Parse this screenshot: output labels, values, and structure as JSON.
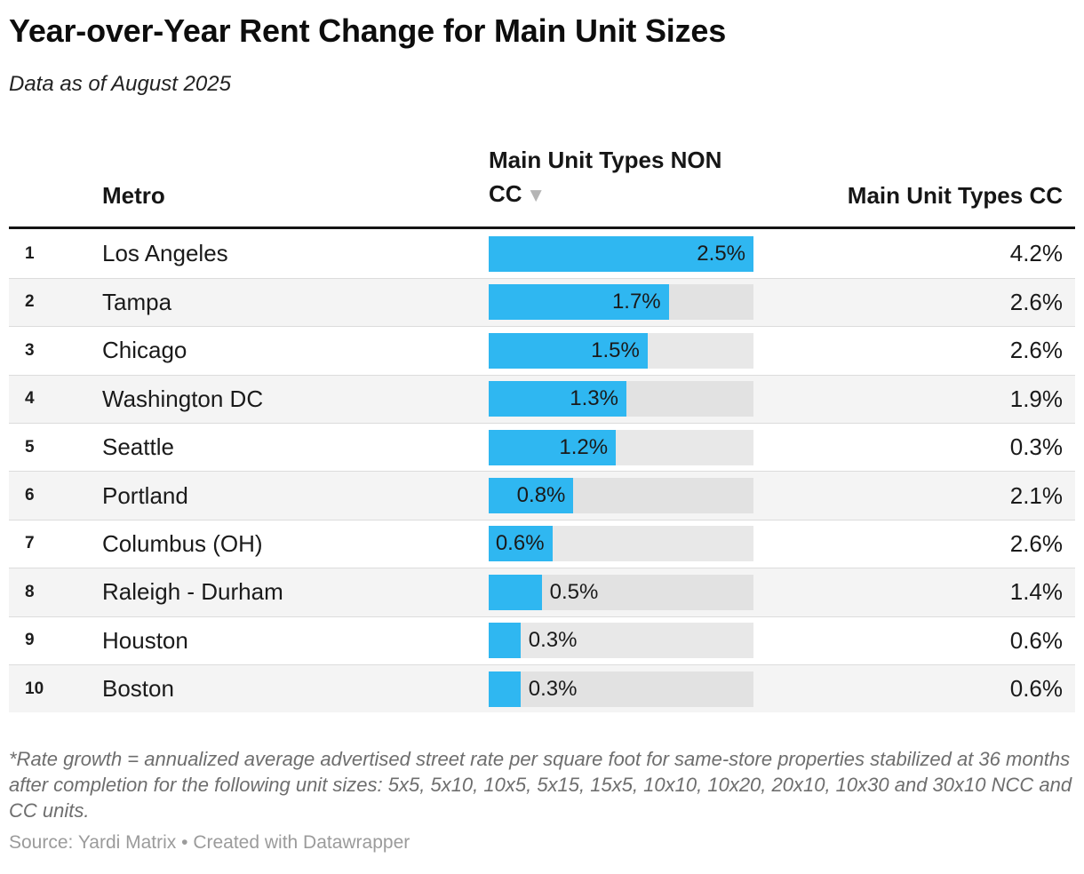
{
  "header": {
    "title": "Year-over-Year Rent Change for Main Unit Sizes",
    "subtitle": "Data as of August 2025"
  },
  "table": {
    "columns": {
      "rank": "",
      "metro": "Metro",
      "non_cc": "Main Unit Types NON CC",
      "cc": "Main Unit Types CC"
    },
    "sorted_column": "Main Unit Types NON CC",
    "sort_direction": "descending"
  },
  "icons": {
    "sort_desc": "▼"
  },
  "chart_data": {
    "type": "table",
    "title": "Year-over-Year Rent Change for Main Unit Sizes",
    "subtitle": "Data as of August 2025",
    "bar_column": "Main Unit Types NON CC",
    "bar_axis_max": 2.5,
    "columns": [
      "Metro",
      "Main Unit Types NON CC",
      "Main Unit Types CC"
    ],
    "rows": [
      {
        "rank": "1",
        "metro": "Los Angeles",
        "non_cc": 2.5,
        "non_cc_label": "2.5%",
        "cc": 4.2,
        "cc_label": "4.2%"
      },
      {
        "rank": "2",
        "metro": "Tampa",
        "non_cc": 1.7,
        "non_cc_label": "1.7%",
        "cc": 2.6,
        "cc_label": "2.6%"
      },
      {
        "rank": "3",
        "metro": "Chicago",
        "non_cc": 1.5,
        "non_cc_label": "1.5%",
        "cc": 2.6,
        "cc_label": "2.6%"
      },
      {
        "rank": "4",
        "metro": "Washington DC",
        "non_cc": 1.3,
        "non_cc_label": "1.3%",
        "cc": 1.9,
        "cc_label": "1.9%"
      },
      {
        "rank": "5",
        "metro": "Seattle",
        "non_cc": 1.2,
        "non_cc_label": "1.2%",
        "cc": 0.3,
        "cc_label": "0.3%"
      },
      {
        "rank": "6",
        "metro": "Portland",
        "non_cc": 0.8,
        "non_cc_label": "0.8%",
        "cc": 2.1,
        "cc_label": "2.1%"
      },
      {
        "rank": "7",
        "metro": "Columbus (OH)",
        "non_cc": 0.6,
        "non_cc_label": "0.6%",
        "cc": 2.6,
        "cc_label": "2.6%"
      },
      {
        "rank": "8",
        "metro": "Raleigh - Durham",
        "non_cc": 0.5,
        "non_cc_label": "0.5%",
        "cc": 1.4,
        "cc_label": "1.4%"
      },
      {
        "rank": "9",
        "metro": "Houston",
        "non_cc": 0.3,
        "non_cc_label": "0.3%",
        "cc": 0.6,
        "cc_label": "0.6%"
      },
      {
        "rank": "10",
        "metro": "Boston",
        "non_cc": 0.3,
        "non_cc_label": "0.3%",
        "cc": 0.6,
        "cc_label": "0.6%"
      }
    ]
  },
  "footer": {
    "footnote": "*Rate growth = annualized average advertised street rate per square foot for same-store properties stabilized at 36 months after completion for the following unit sizes: 5x5, 5x10, 10x5, 5x15, 15x5, 10x10, 10x20, 20x10, 10x30 and 30x10 NCC and CC units.",
    "source": "Source: Yardi Matrix • Created with Datawrapper"
  },
  "colors": {
    "bar": "#2fb7f1",
    "bar_track": "#e8e8e8",
    "bar_track_on_zebra": "#e2e2e2",
    "zebra_row": "#f4f4f4",
    "header_rule": "#141414"
  }
}
